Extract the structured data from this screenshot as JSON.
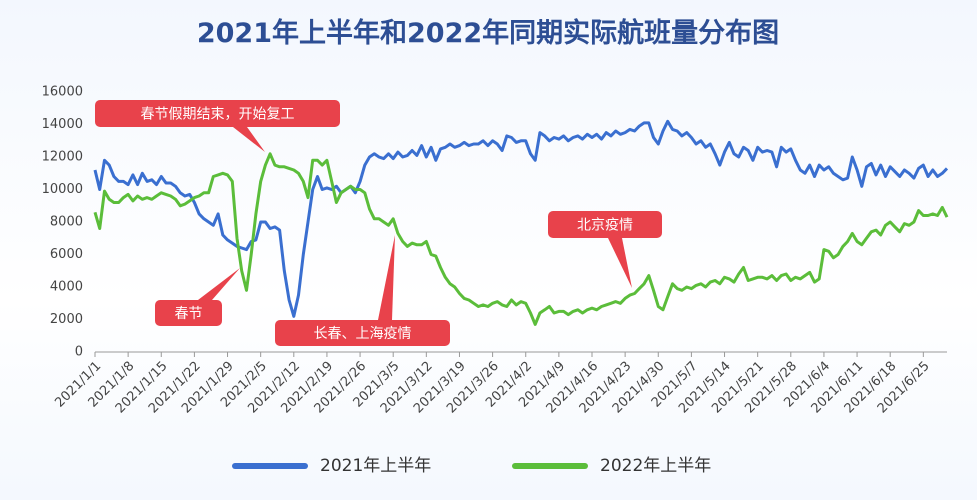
{
  "chart_data": {
    "type": "line",
    "title": "2021年上半年和2022年同期实际航班量分布图",
    "categories": [
      "2021/1/1",
      null,
      null,
      null,
      null,
      null,
      null,
      "2021/1/8",
      null,
      null,
      null,
      null,
      null,
      null,
      "2021/1/15",
      null,
      null,
      null,
      null,
      null,
      null,
      "2021/1/22",
      null,
      null,
      null,
      null,
      null,
      null,
      "2021/1/29",
      null,
      null,
      null,
      null,
      null,
      null,
      "2021/2/5",
      null,
      null,
      null,
      null,
      null,
      null,
      "2021/2/12",
      null,
      null,
      null,
      null,
      null,
      null,
      "2021/2/19",
      null,
      null,
      null,
      null,
      null,
      null,
      "2021/2/26",
      null,
      null,
      null,
      null,
      null,
      null,
      "2021/3/5",
      null,
      null,
      null,
      null,
      null,
      null,
      "2021/3/12",
      null,
      null,
      null,
      null,
      null,
      null,
      "2021/3/19",
      null,
      null,
      null,
      null,
      null,
      null,
      "2021/3/26",
      null,
      null,
      null,
      null,
      null,
      null,
      "2021/4/2",
      null,
      null,
      null,
      null,
      null,
      null,
      "2021/4/9",
      null,
      null,
      null,
      null,
      null,
      null,
      "2021/4/16",
      null,
      null,
      null,
      null,
      null,
      null,
      "2021/4/23",
      null,
      null,
      null,
      null,
      null,
      null,
      "2021/4/30",
      null,
      null,
      null,
      null,
      null,
      null,
      "2021/5/7",
      null,
      null,
      null,
      null,
      null,
      null,
      "2021/5/14",
      null,
      null,
      null,
      null,
      null,
      null,
      "2021/5/21",
      null,
      null,
      null,
      null,
      null,
      null,
      "2021/5/28",
      null,
      null,
      null,
      null,
      null,
      null,
      "2021/6/4",
      null,
      null,
      null,
      null,
      null,
      null,
      "2021/6/11",
      null,
      null,
      null,
      null,
      null,
      null,
      "2021/6/18",
      null,
      null,
      null,
      null,
      null,
      null,
      "2021/6/25",
      null,
      null,
      null,
      null,
      null
    ],
    "series": [
      {
        "name": "2021年上半年",
        "color": "#3a6fd0",
        "values": [
          11200,
          10000,
          11800,
          11500,
          10800,
          10500,
          10500,
          10300,
          10900,
          10300,
          11000,
          10500,
          10600,
          10300,
          10800,
          10400,
          10400,
          10200,
          9800,
          9600,
          9700,
          9200,
          8500,
          8200,
          8000,
          7800,
          8500,
          7200,
          6900,
          6700,
          6500,
          6400,
          6300,
          6800,
          6900,
          8000,
          8000,
          7600,
          7700,
          7500,
          5000,
          3200,
          2200,
          3500,
          6000,
          8000,
          10000,
          10800,
          10000,
          10100,
          10000,
          10200,
          9800,
          10000,
          10200,
          9800,
          10500,
          11500,
          12000,
          12200,
          12000,
          11900,
          12200,
          11900,
          12300,
          12000,
          12100,
          12400,
          12100,
          12700,
          12000,
          12600,
          11800,
          12500,
          12600,
          12800,
          12600,
          12700,
          12900,
          12700,
          12800,
          12800,
          13000,
          12700,
          13000,
          12800,
          12400,
          13300,
          13200,
          12900,
          13000,
          13000,
          12200,
          11800,
          13500,
          13300,
          13000,
          13200,
          13100,
          13300,
          13000,
          13200,
          13300,
          13100,
          13400,
          13200,
          13400,
          13100,
          13500,
          13300,
          13600,
          13400,
          13500,
          13700,
          13600,
          13900,
          14100,
          14100,
          13200,
          12800,
          13600,
          14200,
          13700,
          13600,
          13300,
          13500,
          13200,
          12800,
          13000,
          12600,
          12800,
          12200,
          11500,
          12300,
          12900,
          12200,
          12000,
          12600,
          12400,
          11800,
          12600,
          12300,
          12400,
          12300,
          11400,
          12600,
          12300,
          12500,
          11800,
          11200,
          11000,
          11500,
          10800,
          11500,
          11200,
          11400,
          11000,
          10800,
          10600,
          10700,
          12000,
          11200,
          10200,
          11400,
          11600,
          10900,
          11500,
          10800,
          11400,
          11100,
          10800,
          11200,
          11000,
          10700,
          11300,
          11500,
          10800,
          11200,
          10800,
          11000,
          11300
        ]
      },
      {
        "name": "2022年上半年",
        "color": "#5bbd3a",
        "values": [
          8600,
          7600,
          9900,
          9400,
          9200,
          9200,
          9500,
          9700,
          9300,
          9600,
          9400,
          9500,
          9400,
          9600,
          9800,
          9700,
          9600,
          9400,
          9000,
          9100,
          9300,
          9500,
          9600,
          9800,
          9800,
          10800,
          10900,
          11000,
          10900,
          10500,
          7000,
          5000,
          3800,
          6000,
          8500,
          10500,
          11500,
          12200,
          11500,
          11400,
          11400,
          11300,
          11200,
          11000,
          10500,
          9500,
          11800,
          11800,
          11500,
          11800,
          10500,
          9200,
          9800,
          10000,
          10200,
          10000,
          10000,
          9800,
          8800,
          8200,
          8200,
          8000,
          7800,
          8200,
          7300,
          6800,
          6500,
          6700,
          6600,
          6600,
          6800,
          6000,
          5900,
          5200,
          4600,
          4200,
          4000,
          3600,
          3300,
          3200,
          3000,
          2800,
          2900,
          2800,
          3000,
          3100,
          2900,
          2800,
          3200,
          2900,
          3100,
          3000,
          2400,
          1700,
          2400,
          2600,
          2800,
          2400,
          2500,
          2500,
          2300,
          2500,
          2600,
          2400,
          2600,
          2700,
          2600,
          2800,
          2900,
          3000,
          3100,
          3000,
          3300,
          3500,
          3600,
          3900,
          4200,
          4700,
          3800,
          2800,
          2600,
          3400,
          4200,
          3900,
          3800,
          4000,
          3900,
          4100,
          4200,
          4000,
          4300,
          4400,
          4200,
          4600,
          4500,
          4300,
          4800,
          5200,
          4400,
          4500,
          4600,
          4600,
          4500,
          4700,
          4400,
          4700,
          4800,
          4400,
          4600,
          4500,
          4700,
          4900,
          4300,
          4500,
          6300,
          6200,
          5800,
          6000,
          6500,
          6800,
          7300,
          6800,
          6600,
          7000,
          7400,
          7500,
          7200,
          7800,
          8000,
          7700,
          7400,
          7900,
          7800,
          8000,
          8700,
          8400,
          8400,
          8500,
          8400,
          8900,
          8300
        ]
      }
    ],
    "ylim": [
      0,
      16000
    ],
    "yticks": [
      0,
      2000,
      4000,
      6000,
      8000,
      10000,
      12000,
      14000,
      16000
    ],
    "grid": false,
    "legend": "bottom",
    "annotations": [
      "春节假期结束，开始复工",
      "春节",
      "长春、上海疫情",
      "北京疫情"
    ]
  }
}
